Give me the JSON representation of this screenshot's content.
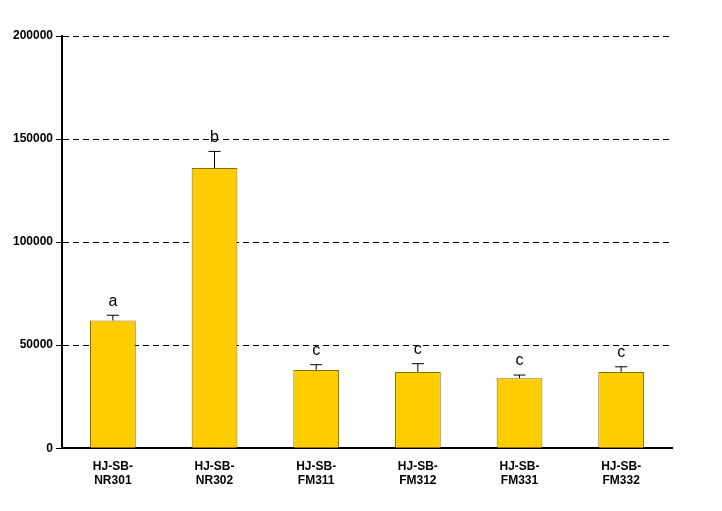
{
  "chart_data": {
    "type": "bar",
    "categories": [
      "HJ-SB-NR301",
      "HJ-SB-NR302",
      "HJ-SB-FM311",
      "HJ-SB-FM312",
      "HJ-SB-FM331",
      "HJ-SB-FM332"
    ],
    "values": [
      62000,
      136000,
      38000,
      37000,
      34000,
      37000
    ],
    "errors": [
      2500,
      8000,
      2500,
      4000,
      1500,
      2500
    ],
    "color": "#ffcc00",
    "ylim": [
      0,
      200000
    ],
    "yticks": [
      0,
      50000,
      100000,
      150000,
      200000
    ],
    "grid": true,
    "annotations": [
      {
        "category": "HJ-SB-NR301",
        "text": "a"
      },
      {
        "category": "HJ-SB-NR302",
        "text": "b"
      },
      {
        "category": "HJ-SB-FM311",
        "text": "c"
      },
      {
        "category": "HJ-SB-FM312",
        "text": "c"
      },
      {
        "category": "HJ-SB-FM331",
        "text": "c"
      },
      {
        "category": "HJ-SB-FM332",
        "text": "c"
      }
    ]
  }
}
